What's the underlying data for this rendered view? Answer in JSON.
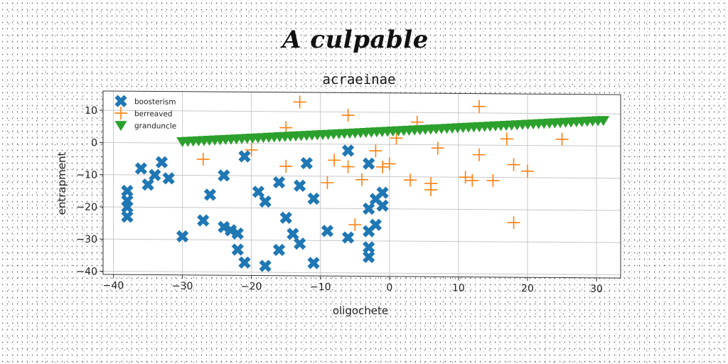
{
  "figure": {
    "title": "A culpable"
  },
  "chart_data": {
    "type": "scatter",
    "title": "acraeinae",
    "xlabel": "oligochete",
    "ylabel": "entrapment",
    "xlim": [
      -41.5,
      33.5
    ],
    "ylim": [
      -41,
      16
    ],
    "xticks": [
      -40,
      -30,
      -20,
      -10,
      0,
      10,
      20,
      30
    ],
    "yticks": [
      -40,
      -30,
      -20,
      -10,
      0,
      10
    ],
    "grid": true,
    "legend_position": "upper-left",
    "series": [
      {
        "name": "boosterism",
        "marker": "X",
        "color": "#1f77b4",
        "points": [
          [
            -38,
            -15
          ],
          [
            -38,
            -18
          ],
          [
            -38,
            -20
          ],
          [
            -38,
            -23
          ],
          [
            -36,
            -8
          ],
          [
            -35,
            -13
          ],
          [
            -34,
            -10
          ],
          [
            -33,
            -6
          ],
          [
            -32,
            -11
          ],
          [
            -30,
            -29
          ],
          [
            -27,
            -24
          ],
          [
            -26,
            -16
          ],
          [
            -24,
            -10
          ],
          [
            -24,
            -26
          ],
          [
            -23,
            -27
          ],
          [
            -22,
            -28
          ],
          [
            -22,
            -33
          ],
          [
            -21,
            -37
          ],
          [
            -21,
            -4
          ],
          [
            -19,
            -15
          ],
          [
            -18,
            -18
          ],
          [
            -18,
            -38
          ],
          [
            -16,
            -12
          ],
          [
            -16,
            -33
          ],
          [
            -15,
            -23
          ],
          [
            -14,
            -28
          ],
          [
            -13,
            -13
          ],
          [
            -13,
            -31
          ],
          [
            -12,
            -6
          ],
          [
            -11,
            -17
          ],
          [
            -11,
            -37
          ],
          [
            -9,
            -27
          ],
          [
            -6,
            -29
          ],
          [
            -6,
            -2
          ],
          [
            -3,
            -6
          ],
          [
            -3,
            -20
          ],
          [
            -3,
            -27
          ],
          [
            -3,
            -32
          ],
          [
            -3,
            -35
          ],
          [
            -2,
            -17
          ],
          [
            -2,
            -25
          ],
          [
            -1,
            -15
          ],
          [
            -1,
            -19
          ]
        ]
      },
      {
        "name": "berreaved",
        "marker": "+",
        "color": "#ff7f0e",
        "points": [
          [
            -27,
            -5
          ],
          [
            -20,
            -2
          ],
          [
            -15,
            5
          ],
          [
            -15,
            -7
          ],
          [
            -13,
            13
          ],
          [
            -9,
            -12
          ],
          [
            -8,
            -5
          ],
          [
            -6,
            9
          ],
          [
            -6,
            -7
          ],
          [
            -5,
            -25
          ],
          [
            -4,
            -11
          ],
          [
            -2,
            -2
          ],
          [
            -1,
            -7
          ],
          [
            0,
            -6
          ],
          [
            1,
            2
          ],
          [
            3,
            -11
          ],
          [
            4,
            7
          ],
          [
            6,
            -12
          ],
          [
            6,
            -14
          ],
          [
            7,
            -1
          ],
          [
            11,
            -10
          ],
          [
            12,
            -11
          ],
          [
            13,
            12
          ],
          [
            13,
            -3
          ],
          [
            15,
            -11
          ],
          [
            17,
            2
          ],
          [
            18,
            -6
          ],
          [
            18,
            -24
          ],
          [
            20,
            -8
          ],
          [
            25,
            2
          ]
        ]
      },
      {
        "name": "granduncle",
        "marker": "v",
        "color": "#2ca02c",
        "line": {
          "x0": -30,
          "x1": 31,
          "y0": 0.5,
          "y1": 8,
          "count": 79
        }
      }
    ]
  }
}
